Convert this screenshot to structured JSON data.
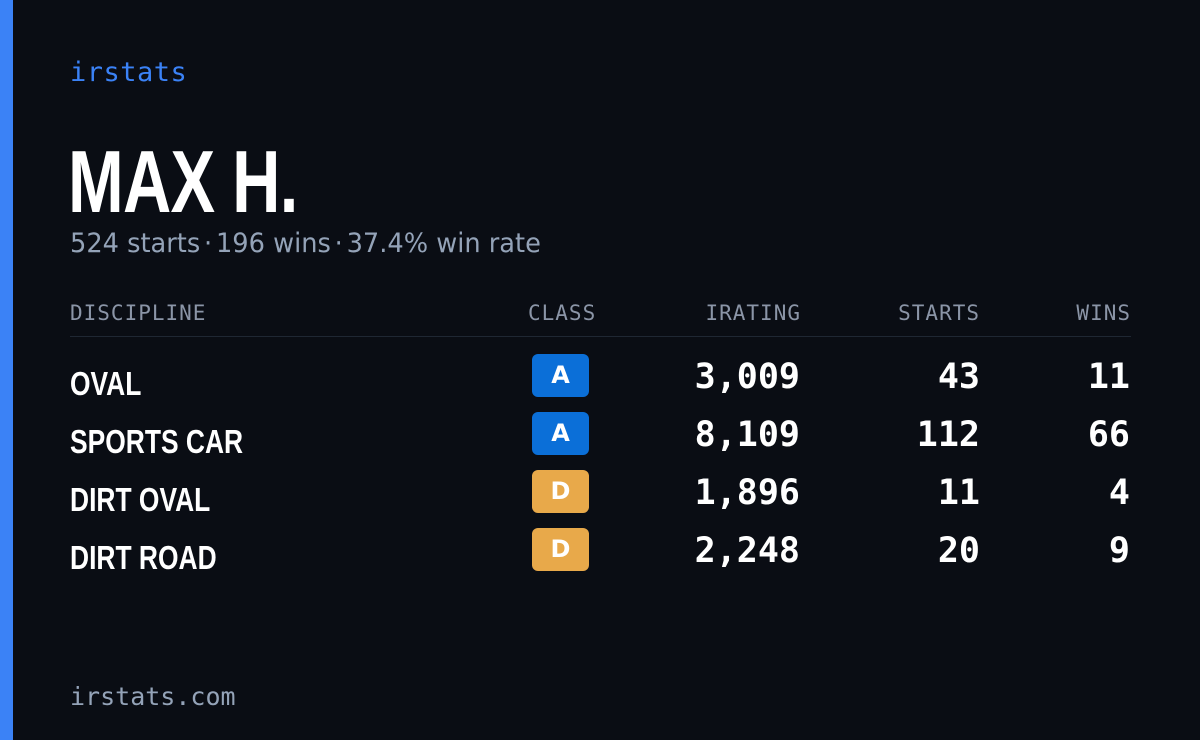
{
  "brand": "irstats",
  "player": {
    "name": "MAX H."
  },
  "summary": {
    "starts": "524 starts",
    "wins": "196 wins",
    "win_rate": "37.4% win rate",
    "separator": "·"
  },
  "table": {
    "headers": {
      "discipline": "DISCIPLINE",
      "class": "CLASS",
      "irating": "IRATING",
      "starts": "STARTS",
      "wins": "WINS"
    },
    "rows": [
      {
        "discipline": "OVAL",
        "class": "A",
        "class_color": "#0b6fd8",
        "irating": "3,009",
        "starts": "43",
        "wins": "11"
      },
      {
        "discipline": "SPORTS CAR",
        "class": "A",
        "class_color": "#0b6fd8",
        "irating": "8,109",
        "starts": "112",
        "wins": "66"
      },
      {
        "discipline": "DIRT OVAL",
        "class": "D",
        "class_color": "#e8a94a",
        "irating": "1,896",
        "starts": "11",
        "wins": "4"
      },
      {
        "discipline": "DIRT ROAD",
        "class": "D",
        "class_color": "#e8a94a",
        "irating": "2,248",
        "starts": "20",
        "wins": "9"
      }
    ]
  },
  "footer": {
    "url": "irstats.com"
  },
  "colors": {
    "background": "#0a0d14",
    "accent": "#3b82f6",
    "muted_text": "#94a3b8",
    "class_a": "#0b6fd8",
    "class_d": "#e8a94a"
  }
}
